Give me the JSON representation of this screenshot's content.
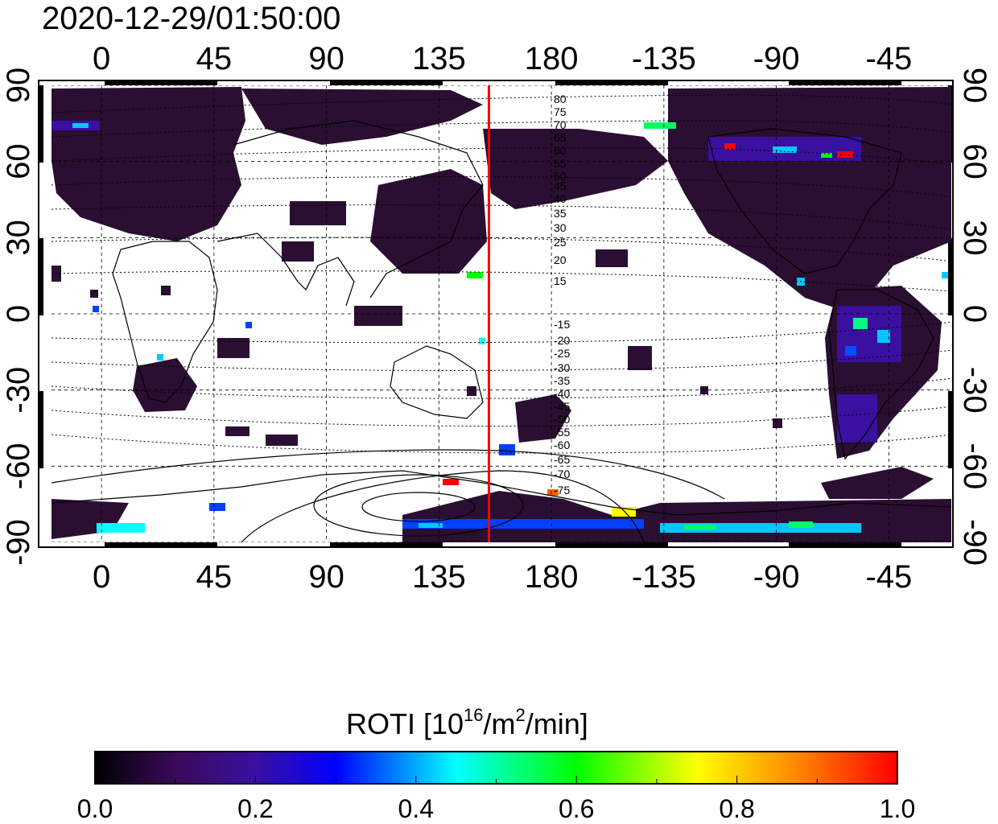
{
  "title": "2020-12-29/01:50:00",
  "map": {
    "top_lon_labels": [
      "0",
      "45",
      "90",
      "135",
      "180",
      "-135",
      "-90",
      "-45"
    ],
    "bottom_lon_labels": [
      "0",
      "45",
      "90",
      "135",
      "180",
      "-135",
      "-90",
      "-45"
    ],
    "lon_values": [
      0,
      45,
      90,
      135,
      180,
      225,
      270,
      315
    ],
    "lon_range": [
      -20,
      340
    ],
    "lat_labels": [
      "90",
      "60",
      "30",
      "0",
      "-30",
      "-60",
      "-90"
    ],
    "lat_values": [
      90,
      60,
      30,
      0,
      -30,
      -60,
      -90
    ],
    "lat_range": [
      -90,
      90
    ],
    "grid": true,
    "meridian_marker": {
      "lon": 155,
      "color": "#ff0000"
    },
    "contour_labels": [
      "80",
      "75",
      "70",
      "65",
      "60",
      "55",
      "50",
      "45",
      "40",
      "35",
      "30",
      "25",
      "20",
      "15",
      "-15",
      "-20",
      "-25",
      "-30",
      "-35",
      "-40",
      "-45",
      "-50",
      "-55",
      "-60",
      "-65",
      "-70",
      "-75"
    ]
  },
  "colorbar": {
    "label_main": "ROTI  [10",
    "label_sup1": "16",
    "label_mid": "/m",
    "label_sup2": "2",
    "label_end": "/min]",
    "ticks": [
      "0.0",
      "0.2",
      "0.4",
      "0.6",
      "0.8",
      "1.0"
    ],
    "tick_values": [
      0,
      0.2,
      0.4,
      0.6,
      0.8,
      1.0
    ]
  },
  "colors": {
    "marker": "#ff0000",
    "land_low_roti": "#2a0f32",
    "scale": [
      "#000000",
      "#3a0a5a",
      "#3a10a0",
      "#0000ff",
      "#00ffff",
      "#00ff00",
      "#ffff00",
      "#ff8000",
      "#ff0000"
    ]
  }
}
